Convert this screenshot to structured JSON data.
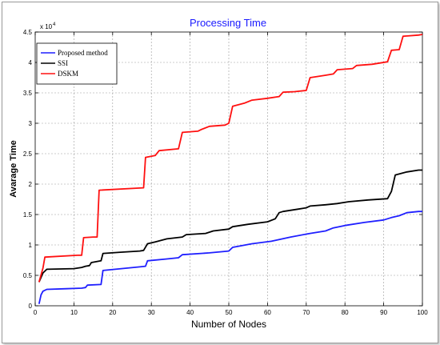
{
  "chart_data": {
    "type": "line",
    "title": "Processing Time",
    "xlabel": "Number of Nodes",
    "ylabel": "Avarage Time",
    "xlim": [
      0,
      100
    ],
    "ylim": [
      0,
      45000
    ],
    "exponent_label": "x 10",
    "exponent_power": "4",
    "x_ticks": [
      0,
      10,
      20,
      30,
      40,
      50,
      60,
      70,
      80,
      90,
      100
    ],
    "y_ticks": [
      0,
      5000,
      10000,
      15000,
      20000,
      25000,
      30000,
      35000,
      40000,
      45000
    ],
    "y_tick_labels": [
      "0",
      "0.5",
      "1",
      "1.5",
      "2",
      "2.5",
      "3",
      "3.5",
      "4",
      "4.5"
    ],
    "grid": true,
    "legend_position": "top-left",
    "series": [
      {
        "name": "Proposed method",
        "color": "#1f1fff",
        "points": [
          [
            1,
            300
          ],
          [
            1.5,
            1800
          ],
          [
            2,
            2400
          ],
          [
            3,
            2700
          ],
          [
            8,
            2800
          ],
          [
            12,
            2900
          ],
          [
            13,
            3000
          ],
          [
            13.5,
            3400
          ],
          [
            17,
            3500
          ],
          [
            17.5,
            5800
          ],
          [
            27,
            6400
          ],
          [
            28.5,
            6500
          ],
          [
            29,
            7400
          ],
          [
            34,
            7700
          ],
          [
            37,
            7900
          ],
          [
            38,
            8400
          ],
          [
            45,
            8700
          ],
          [
            50,
            9000
          ],
          [
            51,
            9600
          ],
          [
            56,
            10200
          ],
          [
            61,
            10600
          ],
          [
            66,
            11300
          ],
          [
            71,
            11900
          ],
          [
            75,
            12300
          ],
          [
            77,
            12800
          ],
          [
            80,
            13200
          ],
          [
            85,
            13700
          ],
          [
            90,
            14100
          ],
          [
            91,
            14300
          ],
          [
            92,
            14500
          ],
          [
            94,
            14800
          ],
          [
            96,
            15300
          ],
          [
            99,
            15500
          ],
          [
            100,
            15500
          ]
        ]
      },
      {
        "name": "SSI",
        "color": "#000000",
        "points": [
          [
            1,
            3900
          ],
          [
            2,
            5400
          ],
          [
            3,
            6000
          ],
          [
            10,
            6100
          ],
          [
            11,
            6200
          ],
          [
            12,
            6300
          ],
          [
            13,
            6500
          ],
          [
            14,
            6600
          ],
          [
            14.5,
            7100
          ],
          [
            17,
            7400
          ],
          [
            17.5,
            8600
          ],
          [
            22,
            8800
          ],
          [
            27,
            9000
          ],
          [
            28,
            9100
          ],
          [
            29,
            10200
          ],
          [
            31,
            10500
          ],
          [
            34,
            11000
          ],
          [
            38,
            11300
          ],
          [
            39,
            11700
          ],
          [
            44,
            11900
          ],
          [
            46,
            12300
          ],
          [
            50,
            12600
          ],
          [
            51,
            13000
          ],
          [
            55,
            13400
          ],
          [
            60,
            13800
          ],
          [
            62,
            14300
          ],
          [
            63,
            15300
          ],
          [
            64,
            15500
          ],
          [
            68,
            15900
          ],
          [
            70,
            16100
          ],
          [
            71,
            16400
          ],
          [
            75,
            16600
          ],
          [
            78,
            16800
          ],
          [
            81,
            17100
          ],
          [
            86,
            17400
          ],
          [
            91,
            17600
          ],
          [
            92,
            18800
          ],
          [
            93,
            21500
          ],
          [
            96,
            22000
          ],
          [
            99,
            22300
          ],
          [
            100,
            22300
          ]
        ]
      },
      {
        "name": "DSKM",
        "color": "#ff1010",
        "points": [
          [
            1,
            3900
          ],
          [
            2,
            6200
          ],
          [
            2.5,
            8000
          ],
          [
            11,
            8300
          ],
          [
            12,
            8300
          ],
          [
            12.5,
            11200
          ],
          [
            15,
            11300
          ],
          [
            16,
            11300
          ],
          [
            16.5,
            19000
          ],
          [
            28,
            19400
          ],
          [
            28.5,
            24400
          ],
          [
            31,
            24700
          ],
          [
            32,
            25500
          ],
          [
            37,
            25800
          ],
          [
            38,
            28500
          ],
          [
            42,
            28700
          ],
          [
            43,
            29000
          ],
          [
            45,
            29500
          ],
          [
            49,
            29700
          ],
          [
            50,
            30000
          ],
          [
            51,
            32800
          ],
          [
            54,
            33300
          ],
          [
            56,
            33800
          ],
          [
            60,
            34100
          ],
          [
            63,
            34400
          ],
          [
            64,
            35100
          ],
          [
            67,
            35200
          ],
          [
            70,
            35400
          ],
          [
            71,
            37500
          ],
          [
            75,
            37900
          ],
          [
            77,
            38100
          ],
          [
            78,
            38800
          ],
          [
            82,
            39000
          ],
          [
            83,
            39500
          ],
          [
            87,
            39700
          ],
          [
            91,
            40100
          ],
          [
            92,
            42000
          ],
          [
            94,
            42100
          ],
          [
            95,
            44300
          ],
          [
            99,
            44500
          ],
          [
            100,
            44600
          ]
        ]
      }
    ]
  }
}
